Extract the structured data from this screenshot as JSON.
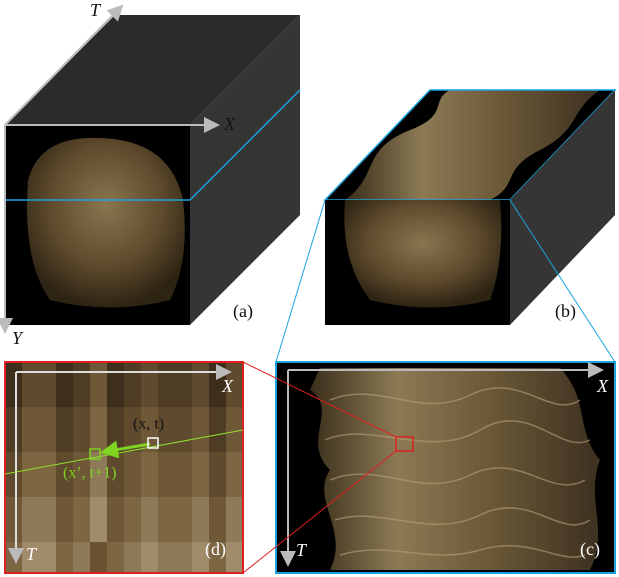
{
  "panel_a": {
    "axes": {
      "x": "X",
      "y": "Y",
      "t": "T"
    },
    "label": "(a)"
  },
  "panel_b": {
    "label": "(b)"
  },
  "panel_c": {
    "axes": {
      "x": "X",
      "t": "T"
    },
    "label": "(c)"
  },
  "panel_d": {
    "axes": {
      "x": "X",
      "t": "T"
    },
    "label": "(d)",
    "point_current": "(x, t)",
    "point_next": "(x’, t+1)"
  }
}
